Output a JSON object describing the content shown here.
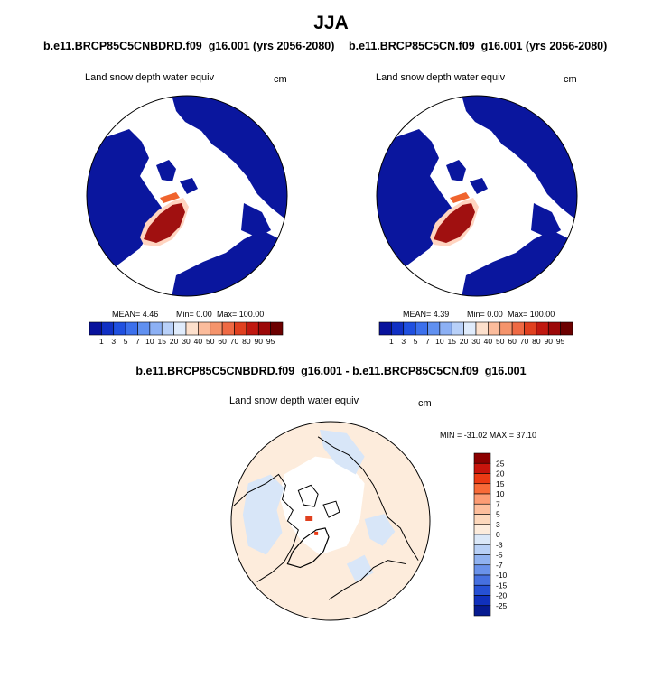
{
  "figure": {
    "title": "JJA"
  },
  "chart_data": [
    {
      "type": "heatmap",
      "projection": "north-polar-stereographic",
      "title": "b.e11.BRCP85C5CNBDRD.f09_g16.001 (yrs 2056-2080)",
      "variable": "Land snow depth water equiv",
      "units": "cm",
      "stats_text": {
        "mean": "MEAN=   4.46",
        "min": "Min=    0.00",
        "max": "Max= 100.00"
      },
      "stats": {
        "mean": 4.46,
        "min": 0.0,
        "max": 100.0
      },
      "colorbar": {
        "levels": [
          "1",
          "3",
          "5",
          "7",
          "10",
          "15",
          "20",
          "30",
          "40",
          "50",
          "60",
          "70",
          "80",
          "90",
          "95"
        ],
        "colors": [
          "#08129c",
          "#1030c4",
          "#2050e0",
          "#3c70ec",
          "#6090f0",
          "#8cb0f4",
          "#b8d0f8",
          "#e0ecfc",
          "#fde0cc",
          "#fbbc9c",
          "#f5946c",
          "#ef6a44",
          "#e0401f",
          "#c01810",
          "#9c0808",
          "#6c0000"
        ]
      }
    },
    {
      "type": "heatmap",
      "projection": "north-polar-stereographic",
      "title": "b.e11.BRCP85C5CN.f09_g16.001 (yrs 2056-2080)",
      "variable": "Land snow depth water equiv",
      "units": "cm",
      "stats_text": {
        "mean": "MEAN=   4.39",
        "min": "Min=    0.00",
        "max": "Max= 100.00"
      },
      "stats": {
        "mean": 4.39,
        "min": 0.0,
        "max": 100.0
      },
      "colorbar": {
        "levels": [
          "1",
          "3",
          "5",
          "7",
          "10",
          "15",
          "20",
          "30",
          "40",
          "50",
          "60",
          "70",
          "80",
          "90",
          "95"
        ],
        "colors": [
          "#08129c",
          "#1030c4",
          "#2050e0",
          "#3c70ec",
          "#6090f0",
          "#8cb0f4",
          "#b8d0f8",
          "#e0ecfc",
          "#fde0cc",
          "#fbbc9c",
          "#f5946c",
          "#ef6a44",
          "#e0401f",
          "#c01810",
          "#9c0808",
          "#6c0000"
        ]
      }
    },
    {
      "type": "heatmap",
      "projection": "north-polar-stereographic",
      "title": "b.e11.BRCP85C5CNBDRD.f09_g16.001 - b.e11.BRCP85C5CN.f09_g16.001",
      "variable": "Land snow depth water equiv",
      "units": "cm",
      "stats_text": {
        "min_max": "MIN = -31.02 MAX =  37.10"
      },
      "stats": {
        "min": -31.02,
        "max": 37.1
      },
      "colorbar": {
        "orientation": "vertical",
        "levels": [
          "25",
          "20",
          "15",
          "10",
          "7",
          "5",
          "3",
          "0",
          "-3",
          "-5",
          "-7",
          "-10",
          "-15",
          "-20",
          "-25"
        ],
        "colors": [
          "#8c0000",
          "#c8140c",
          "#ec3a14",
          "#f86a38",
          "#fc9c74",
          "#fdbe9c",
          "#fdd8bc",
          "#fdecdc",
          "#dbe8f8",
          "#b8d0f6",
          "#90b2f0",
          "#6a92ea",
          "#4670e0",
          "#2650d4",
          "#1030bc",
          "#061a90"
        ]
      }
    }
  ]
}
